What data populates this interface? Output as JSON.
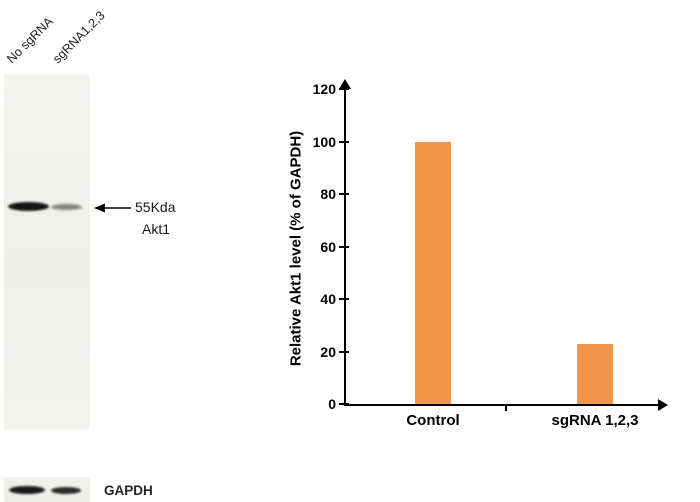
{
  "blot": {
    "lane_labels": [
      "No sgRNA",
      "sgRNA1,2,3"
    ],
    "band_annotation": {
      "line1": "55Kda",
      "line2": "Akt1"
    },
    "loading_control_label": "GAPDH",
    "bands": {
      "akt1": {
        "no_sgrna": "strong",
        "sgrna_123": "weak"
      },
      "gapdh": {
        "no_sgrna": "strong",
        "sgrna_123": "strong"
      }
    }
  },
  "chart_data": {
    "type": "bar",
    "categories": [
      "Control",
      "sgRNA 1,2,3"
    ],
    "values": [
      100,
      23
    ],
    "title": "",
    "xlabel": "",
    "ylabel": "Relative Akt1 level (% of GAPDH)",
    "ylim": [
      0,
      120
    ],
    "yticks": [
      0,
      20,
      40,
      60,
      80,
      100,
      120
    ],
    "bar_color": "#F0954A",
    "axis_color": "#000000",
    "grid": false,
    "legend": "none"
  }
}
